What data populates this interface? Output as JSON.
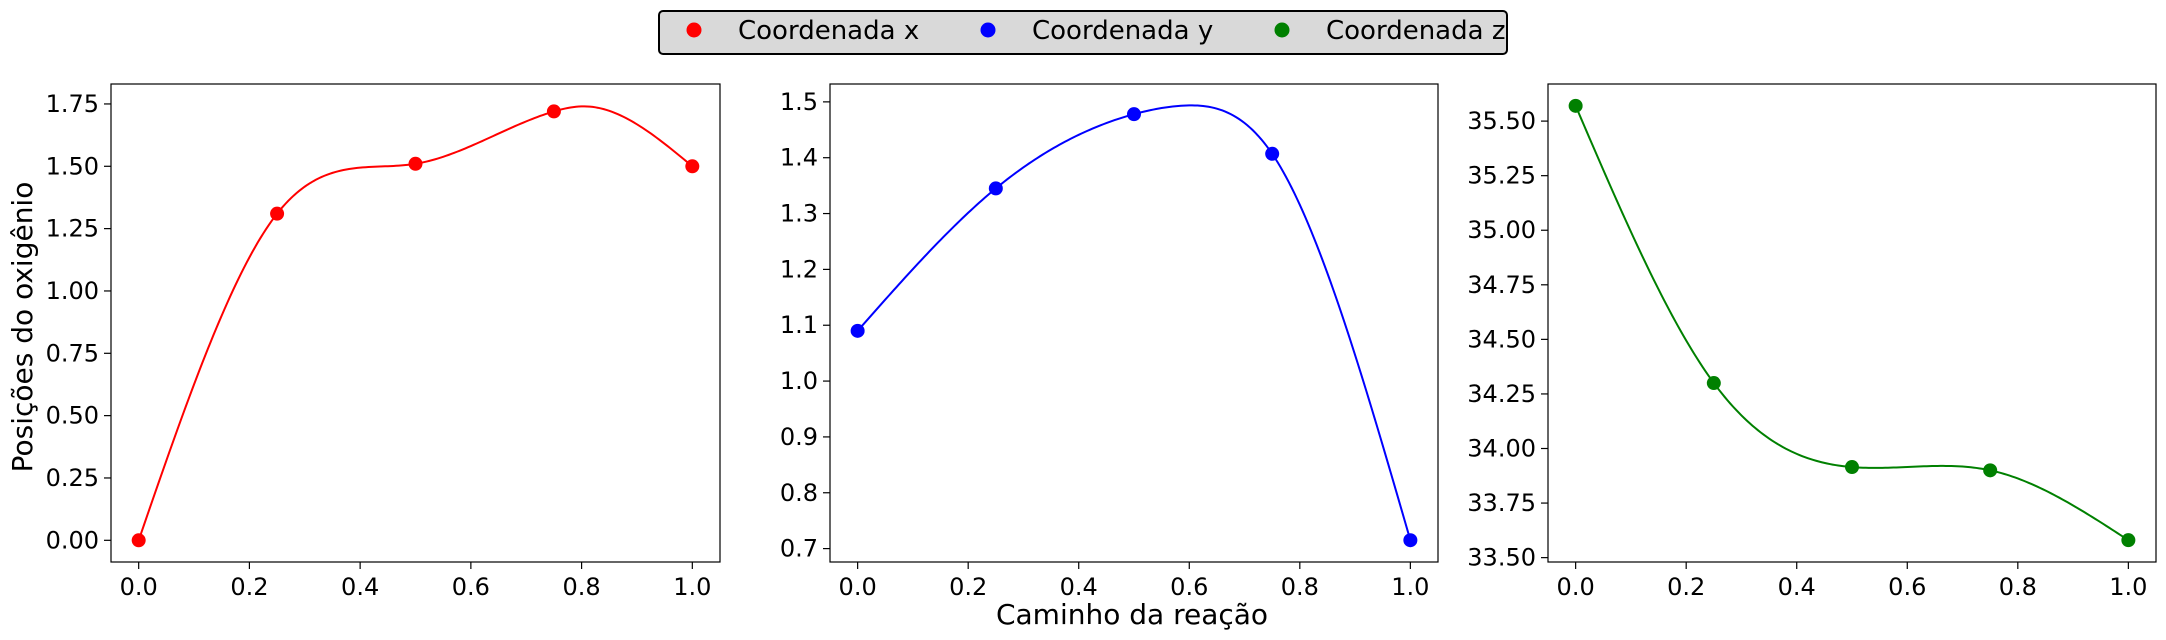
{
  "legend": {
    "placement": "top-center",
    "background": "#d9d9d9",
    "entries": [
      {
        "label": "Coordenada x",
        "color": "#ff0000"
      },
      {
        "label": "Coordenada y",
        "color": "#0000ff"
      },
      {
        "label": "Coordenada z",
        "color": "#008000"
      }
    ]
  },
  "xlabel": "Caminho da reação",
  "ylabel": "Posições do oxigênio",
  "chart_data": [
    {
      "type": "line",
      "series_name": "Coordenada x",
      "color": "#ff0000",
      "x": [
        0.0,
        0.25,
        0.5,
        0.75,
        1.0
      ],
      "y": [
        0.0,
        1.31,
        1.51,
        1.72,
        1.5
      ],
      "curve_peak": {
        "x": 0.81,
        "y": 1.74
      },
      "xlim": [
        -0.05,
        1.05
      ],
      "ylim": [
        -0.087,
        1.83
      ],
      "xticks": [
        0.0,
        0.2,
        0.4,
        0.6,
        0.8,
        1.0
      ],
      "xtick_labels": [
        "0.0",
        "0.2",
        "0.4",
        "0.6",
        "0.8",
        "1.0"
      ],
      "yticks": [
        0.0,
        0.25,
        0.5,
        0.75,
        1.0,
        1.25,
        1.5,
        1.75
      ],
      "ytick_labels": [
        "0.00",
        "0.25",
        "0.50",
        "0.75",
        "1.00",
        "1.25",
        "1.50",
        "1.75"
      ],
      "grid": false
    },
    {
      "type": "line",
      "series_name": "Coordenada y",
      "color": "#0000ff",
      "x": [
        0.0,
        0.25,
        0.5,
        0.75,
        1.0
      ],
      "y": [
        1.09,
        1.345,
        1.478,
        1.407,
        0.715
      ],
      "curve_peak": {
        "x": 0.585,
        "y": 1.493
      },
      "xlim": [
        -0.05,
        1.05
      ],
      "ylim": [
        0.676,
        1.532
      ],
      "xticks": [
        0.0,
        0.2,
        0.4,
        0.6,
        0.8,
        1.0
      ],
      "xtick_labels": [
        "0.0",
        "0.2",
        "0.4",
        "0.6",
        "0.8",
        "1.0"
      ],
      "yticks": [
        0.7,
        0.8,
        0.9,
        1.0,
        1.1,
        1.2,
        1.3,
        1.4,
        1.5
      ],
      "ytick_labels": [
        "0.7",
        "0.8",
        "0.9",
        "1.0",
        "1.1",
        "1.2",
        "1.3",
        "1.4",
        "1.5"
      ],
      "grid": false
    },
    {
      "type": "line",
      "series_name": "Coordenada z",
      "color": "#008000",
      "x": [
        0.0,
        0.25,
        0.5,
        0.75,
        1.0
      ],
      "y": [
        35.57,
        34.3,
        33.915,
        33.9,
        33.58
      ],
      "xlim": [
        -0.05,
        1.05
      ],
      "ylim": [
        33.48,
        35.67
      ],
      "xticks": [
        0.0,
        0.2,
        0.4,
        0.6,
        0.8,
        1.0
      ],
      "xtick_labels": [
        "0.0",
        "0.2",
        "0.4",
        "0.6",
        "0.8",
        "1.0"
      ],
      "yticks": [
        33.5,
        33.75,
        34.0,
        34.25,
        34.5,
        34.75,
        35.0,
        35.25,
        35.5
      ],
      "ytick_labels": [
        "33.50",
        "33.75",
        "34.00",
        "34.25",
        "34.50",
        "34.75",
        "35.00",
        "35.25",
        "35.50"
      ],
      "grid": false
    }
  ]
}
